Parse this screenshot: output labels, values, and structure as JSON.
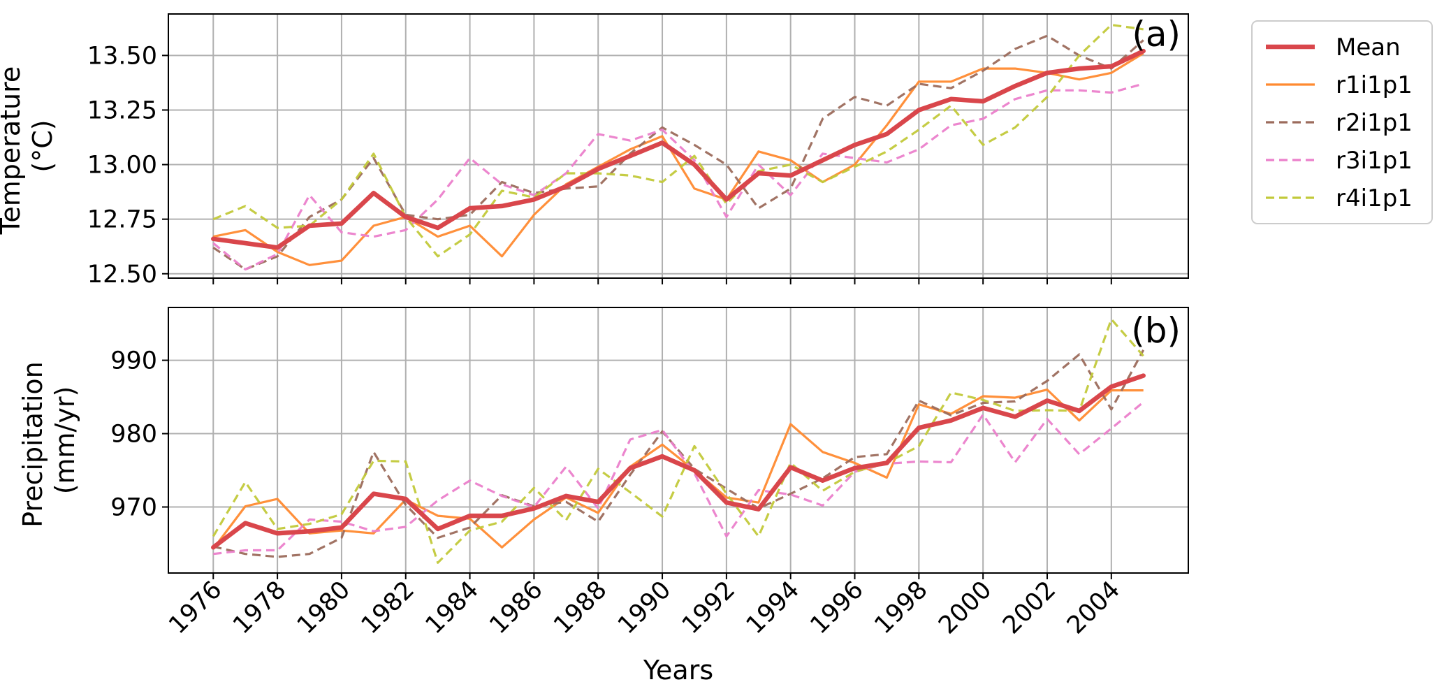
{
  "colors": {
    "mean": "#d9464b",
    "r1i1p1": "#ff8a30",
    "r2i1p1": "#9c6b5c",
    "r3i1p1": "#eb7fcb",
    "r4i1p1": "#c2c93a",
    "grid": "#b0b0b0",
    "axes": "#000000"
  },
  "legend": {
    "placement": "outside-top-right",
    "entries": [
      {
        "key": "mean",
        "label": "Mean",
        "style": "solid-thick"
      },
      {
        "key": "r1i1p1",
        "label": "r1i1p1",
        "style": "solid"
      },
      {
        "key": "r2i1p1",
        "label": "r2i1p1",
        "style": "dashed"
      },
      {
        "key": "r3i1p1",
        "label": "r3i1p1",
        "style": "dashed"
      },
      {
        "key": "r4i1p1",
        "label": "r4i1p1",
        "style": "dashed"
      }
    ]
  },
  "chart_data": [
    {
      "type": "line",
      "panel_label": "(a)",
      "xlabel": "",
      "ylabel": [
        "Temperature",
        "(°C)"
      ],
      "grid": true,
      "xlim": [
        1974.6,
        2006.4
      ],
      "ylim": [
        12.48,
        13.69
      ],
      "yticks": [
        "12.50",
        "12.75",
        "13.00",
        "13.25",
        "13.50"
      ],
      "ytick_values": [
        12.5,
        12.75,
        13.0,
        13.25,
        13.5
      ],
      "x": [
        1976,
        1977,
        1978,
        1979,
        1980,
        1981,
        1982,
        1983,
        1984,
        1985,
        1986,
        1987,
        1988,
        1989,
        1990,
        1991,
        1992,
        1993,
        1994,
        1995,
        1996,
        1997,
        1998,
        1999,
        2000,
        2001,
        2002,
        2003,
        2004,
        2005
      ],
      "series": [
        {
          "key": "mean",
          "name": "Mean",
          "values": [
            12.66,
            12.64,
            12.62,
            12.72,
            12.73,
            12.87,
            12.76,
            12.71,
            12.8,
            12.81,
            12.84,
            12.9,
            12.98,
            13.04,
            13.1,
            13.0,
            12.84,
            12.96,
            12.95,
            13.02,
            13.09,
            13.14,
            13.25,
            13.3,
            13.29,
            13.36,
            13.42,
            13.44,
            13.45,
            13.52
          ]
        },
        {
          "key": "r1i1p1",
          "name": "r1i1p1",
          "values": [
            12.67,
            12.7,
            12.6,
            12.54,
            12.56,
            12.72,
            12.76,
            12.67,
            12.72,
            12.58,
            12.77,
            12.91,
            12.99,
            13.07,
            13.13,
            12.89,
            12.84,
            13.06,
            13.02,
            12.92,
            13.0,
            13.18,
            13.38,
            13.38,
            13.44,
            13.44,
            13.42,
            13.39,
            13.42,
            13.51
          ]
        },
        {
          "key": "r2i1p1",
          "name": "r2i1p1",
          "values": [
            12.62,
            12.52,
            12.58,
            12.76,
            12.84,
            13.03,
            12.77,
            12.75,
            12.77,
            12.92,
            12.87,
            12.89,
            12.9,
            13.05,
            13.17,
            13.09,
            13.0,
            12.8,
            12.89,
            13.21,
            13.31,
            13.27,
            13.37,
            13.35,
            13.43,
            13.53,
            13.59,
            13.5,
            13.44,
            13.57
          ]
        },
        {
          "key": "r3i1p1",
          "name": "r3i1p1",
          "values": [
            12.64,
            12.52,
            12.59,
            12.86,
            12.69,
            12.67,
            12.7,
            12.84,
            13.03,
            12.91,
            12.86,
            12.96,
            13.14,
            13.11,
            13.16,
            13.02,
            12.76,
            13.0,
            12.86,
            13.05,
            13.03,
            13.01,
            13.07,
            13.18,
            13.21,
            13.3,
            13.34,
            13.34,
            13.33,
            13.37
          ]
        },
        {
          "key": "r4i1p1",
          "name": "r4i1p1",
          "values": [
            12.75,
            12.81,
            12.71,
            12.72,
            12.84,
            13.05,
            12.76,
            12.58,
            12.68,
            12.88,
            12.85,
            12.96,
            12.96,
            12.95,
            12.92,
            13.04,
            12.82,
            12.97,
            13.0,
            12.92,
            12.99,
            13.06,
            13.16,
            13.27,
            13.09,
            13.17,
            13.31,
            13.5,
            13.64,
            13.62
          ]
        }
      ]
    },
    {
      "type": "line",
      "panel_label": "(b)",
      "xlabel": "Years",
      "ylabel": [
        "Precipitation",
        "(mm/yr)"
      ],
      "grid": true,
      "xlim": [
        1974.6,
        2006.4
      ],
      "ylim": [
        961,
        997.2
      ],
      "yticks": [
        "970",
        "980",
        "990"
      ],
      "ytick_values": [
        970,
        980,
        990
      ],
      "xticks": [
        "1976",
        "1978",
        "1980",
        "1982",
        "1984",
        "1986",
        "1988",
        "1990",
        "1992",
        "1994",
        "1996",
        "1998",
        "2000",
        "2002",
        "2004"
      ],
      "xtick_values": [
        1976,
        1978,
        1980,
        1982,
        1984,
        1986,
        1988,
        1990,
        1992,
        1994,
        1996,
        1998,
        2000,
        2002,
        2004
      ],
      "x": [
        1976,
        1977,
        1978,
        1979,
        1980,
        1981,
        1982,
        1983,
        1984,
        1985,
        1986,
        1987,
        1988,
        1989,
        1990,
        1991,
        1992,
        1993,
        1994,
        1995,
        1996,
        1997,
        1998,
        1999,
        2000,
        2001,
        2002,
        2003,
        2004,
        2005
      ],
      "series": [
        {
          "key": "mean",
          "name": "Mean",
          "values": [
            964.5,
            967.8,
            966.4,
            966.7,
            967.2,
            971.8,
            971.1,
            967.0,
            968.8,
            968.8,
            969.8,
            971.5,
            970.7,
            975.3,
            976.9,
            975.0,
            970.6,
            969.7,
            975.4,
            973.6,
            975.3,
            976.0,
            980.8,
            981.8,
            983.5,
            982.3,
            984.5,
            983.1,
            986.4,
            987.9
          ]
        },
        {
          "key": "r1i1p1",
          "name": "r1i1p1",
          "values": [
            964.3,
            970.1,
            971.1,
            966.4,
            966.8,
            966.4,
            971.0,
            968.8,
            968.4,
            964.5,
            968.3,
            971.3,
            969.2,
            975.5,
            978.5,
            975.0,
            971.3,
            970.6,
            981.3,
            977.5,
            976.0,
            974.0,
            984.0,
            982.7,
            985.1,
            984.9,
            986.0,
            981.8,
            985.9,
            985.9
          ]
        },
        {
          "key": "r2i1p1",
          "name": "r2i1p1",
          "values": [
            964.6,
            963.6,
            963.2,
            963.6,
            965.8,
            977.5,
            970.3,
            965.8,
            967.2,
            971.6,
            970.1,
            970.7,
            968.0,
            974.4,
            980.3,
            975.2,
            972.5,
            969.8,
            971.8,
            973.9,
            976.8,
            977.2,
            984.5,
            982.5,
            984.2,
            984.4,
            987.2,
            990.8,
            983.3,
            991.4
          ]
        },
        {
          "key": "r3i1p1",
          "name": "r3i1p1",
          "values": [
            963.6,
            964.1,
            964.1,
            968.3,
            968.0,
            966.7,
            967.3,
            970.9,
            973.6,
            971.5,
            970.0,
            975.5,
            969.8,
            979.2,
            980.5,
            974.6,
            966.0,
            972.3,
            971.7,
            970.2,
            974.8,
            975.9,
            976.2,
            976.1,
            982.6,
            976.1,
            982.0,
            977.2,
            980.7,
            984.3
          ]
        },
        {
          "key": "r4i1p1",
          "name": "r4i1p1",
          "values": [
            966.0,
            973.4,
            967.0,
            967.7,
            969.0,
            976.3,
            976.2,
            962.4,
            966.8,
            968.0,
            972.6,
            968.2,
            975.2,
            972.0,
            968.7,
            978.3,
            971.8,
            966.0,
            976.0,
            972.2,
            974.8,
            976.0,
            978.3,
            985.6,
            984.6,
            983.1,
            983.2,
            983.1,
            995.6,
            990.6
          ]
        }
      ]
    }
  ]
}
